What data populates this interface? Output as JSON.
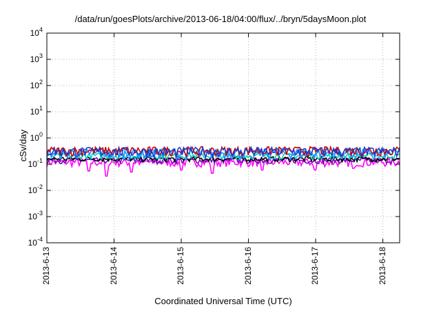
{
  "chart_data": {
    "type": "line",
    "title": "/data/run/goesPlots/archive/2013-06-18/04:00/flux/../bryn/5daysMoon.plot",
    "xlabel": "Coordinated Universal Time (UTC)",
    "ylabel": "cSv/day",
    "yscale": "log",
    "ylim": [
      0.0001,
      10000
    ],
    "xlim": [
      "2013-06-13",
      "2013-06-18 06:00"
    ],
    "grid": true,
    "legend": "none",
    "yticks": [
      {
        "base": "10",
        "exp": "-4",
        "value": 0.0001
      },
      {
        "base": "10",
        "exp": "-3",
        "value": 0.001
      },
      {
        "base": "10",
        "exp": "-2",
        "value": 0.01
      },
      {
        "base": "10",
        "exp": "-1",
        "value": 0.1
      },
      {
        "base": "10",
        "exp": "0",
        "value": 1
      },
      {
        "base": "10",
        "exp": "1",
        "value": 10
      },
      {
        "base": "10",
        "exp": "2",
        "value": 100
      },
      {
        "base": "10",
        "exp": "3",
        "value": 1000
      },
      {
        "base": "10",
        "exp": "4",
        "value": 10000
      }
    ],
    "xticks": [
      {
        "label": "2013-6-13",
        "value": "2013-06-13"
      },
      {
        "label": "2013-6-14",
        "value": "2013-06-14"
      },
      {
        "label": "2013-6-15",
        "value": "2013-06-15"
      },
      {
        "label": "2013-6-16",
        "value": "2013-06-16"
      },
      {
        "label": "2013-6-17",
        "value": "2013-06-17"
      },
      {
        "label": "2013-6-18",
        "value": "2013-06-18"
      }
    ],
    "series": [
      {
        "color": "#ff00ff",
        "base": 0.12,
        "amp": 0.35,
        "dips": [
          {
            "x": 0.12,
            "v": 0.055
          },
          {
            "x": 0.17,
            "v": 0.035
          },
          {
            "x": 0.24,
            "v": 0.05
          },
          {
            "x": 0.38,
            "v": 0.06
          },
          {
            "x": 0.47,
            "v": 0.045
          },
          {
            "x": 0.61,
            "v": 0.06
          },
          {
            "x": 0.76,
            "v": 0.06
          },
          {
            "x": 0.87,
            "v": 0.07
          }
        ]
      },
      {
        "color": "#6a0dad",
        "base": 0.14,
        "amp": 0.25,
        "dips": []
      },
      {
        "color": "#000000",
        "base": 0.16,
        "amp": 0.22,
        "dips": []
      },
      {
        "color": "#00d0c0",
        "base": 0.21,
        "amp": 0.25,
        "dips": []
      },
      {
        "color": "#1e90ff",
        "base": 0.27,
        "amp": 0.45,
        "dips": []
      },
      {
        "color": "#cc0000",
        "base": 0.33,
        "amp": 0.4,
        "dips": []
      },
      {
        "color": "#1a3ccc",
        "base": 0.31,
        "amp": 0.42,
        "dips": []
      }
    ]
  }
}
